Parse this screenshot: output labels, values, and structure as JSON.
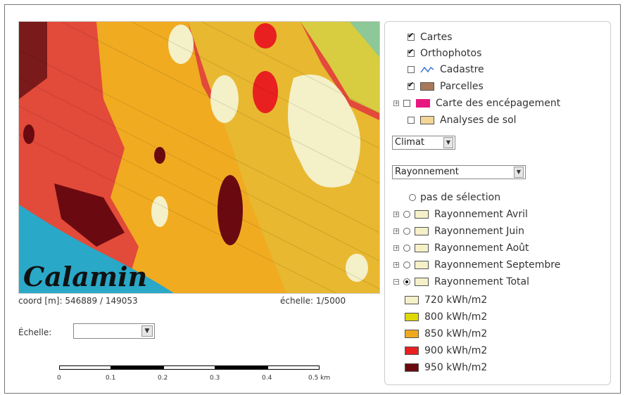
{
  "map": {
    "place_label": "Calamin",
    "coord_text": "coord [m]: 546889 / 149053",
    "echelle_text": "échelle: 1/5000"
  },
  "scale_control": {
    "label": "Échelle:",
    "selected": ""
  },
  "scalebar": {
    "ticks": [
      "0",
      "0.1",
      "0.2",
      "0.3",
      "0.4",
      "0.5 km"
    ]
  },
  "layers": [
    {
      "label": "Cartes",
      "checked": true,
      "swatch": null,
      "expand": false
    },
    {
      "label": "Orthophotos",
      "checked": true,
      "swatch": null,
      "expand": false
    },
    {
      "label": "Cadastre",
      "checked": false,
      "swatch": "line-icon",
      "expand": false
    },
    {
      "label": "Parcelles",
      "checked": true,
      "swatch": "#a9785a",
      "expand": false
    },
    {
      "label": "Carte des encépagement",
      "checked": false,
      "swatch": "#e8177f",
      "expand": true
    },
    {
      "label": "Analyses de sol",
      "checked": false,
      "swatch": "#f3d695",
      "expand": false
    }
  ],
  "theme_select": {
    "value": "Climat"
  },
  "sub_select": {
    "value": "Rayonnement"
  },
  "radio_options": [
    {
      "label": "pas de sélection",
      "checked": false,
      "expand": false
    },
    {
      "label": "Rayonnement Avril",
      "checked": false,
      "expand": true
    },
    {
      "label": "Rayonnement Juin",
      "checked": false,
      "expand": true
    },
    {
      "label": "Rayonnement Août",
      "checked": false,
      "expand": true
    },
    {
      "label": "Rayonnement Septembre",
      "checked": false,
      "expand": true
    },
    {
      "label": "Rayonnement Total",
      "checked": true,
      "expand": true
    }
  ],
  "legend": [
    {
      "label": "720 kWh/m2",
      "color": "#f4f0c8"
    },
    {
      "label": "800 kWh/m2",
      "color": "#e0d800"
    },
    {
      "label": "850 kWh/m2",
      "color": "#f0a820"
    },
    {
      "label": "900 kWh/m2",
      "color": "#e82020"
    },
    {
      "label": "950 kWh/m2",
      "color": "#6a0a10"
    }
  ]
}
